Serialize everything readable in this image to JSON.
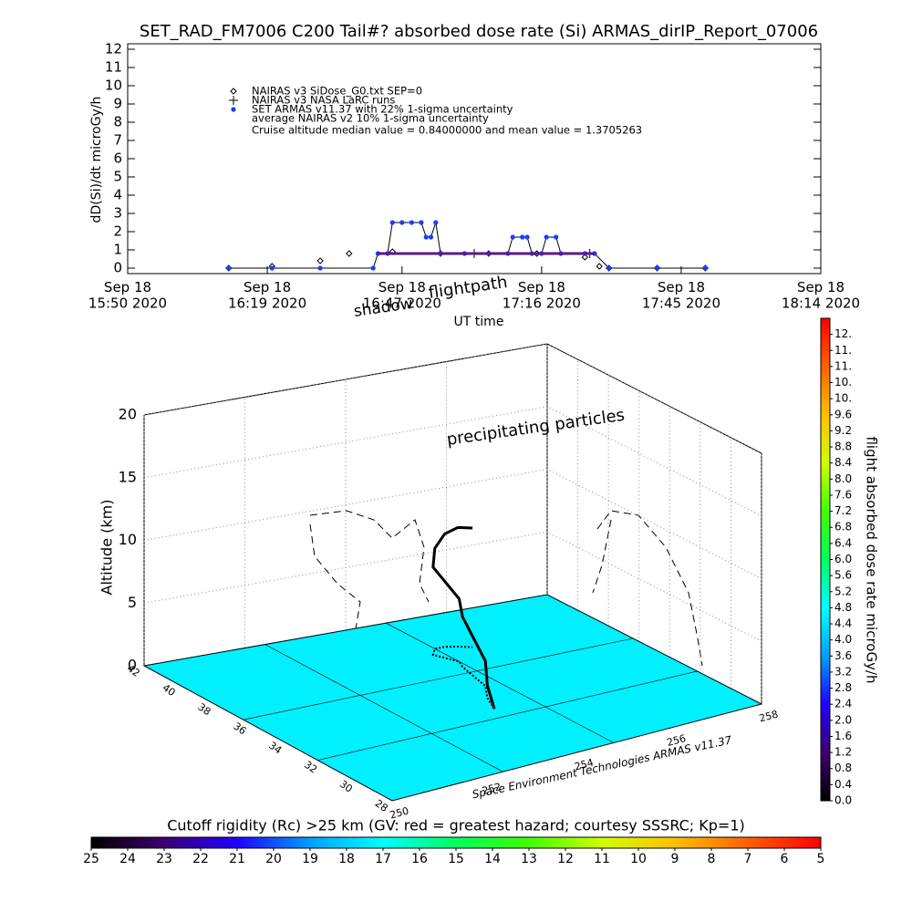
{
  "chart_data": [
    {
      "type": "line",
      "title": "SET_RAD_FM7006  C200 Tail#? absorbed dose rate (Si) ARMAS_dirIP_Report_07006",
      "ylabel": "dD(Si)/dt microGy/h",
      "xlim": [
        "2020-09-18T15:50",
        "2020-09-18T18:14"
      ],
      "xticks": [
        {
          "value": "2020-09-18T15:50",
          "label": "Sep 18\n15:50 2020"
        },
        {
          "value": "2020-09-18T16:19",
          "label": "Sep 18\n16:19 2020"
        },
        {
          "value": "2020-09-18T16:47",
          "label": "Sep 18\n16:47 2020"
        },
        {
          "value": "2020-09-18T17:16",
          "label": "Sep 18\n17:16 2020"
        },
        {
          "value": "2020-09-18T17:45",
          "label": "Sep 18\n17:45 2020"
        },
        {
          "value": "2020-09-18T18:14",
          "label": "Sep 18\n18:14 2020"
        }
      ],
      "ylim": [
        -0.3,
        12.3
      ],
      "yticks": [
        0,
        1,
        2,
        3,
        4,
        5,
        6,
        7,
        8,
        9,
        10,
        11,
        12
      ],
      "annotation": "Cruise altitude median value = 0.84000000 and mean value = 1.3705263",
      "series": [
        {
          "name": "NAIRAS v3 SiDose_G0.txt SEP=0",
          "color": "#000000",
          "marker": "diamond",
          "line": false,
          "x": [
            "2020-09-18T16:11",
            "2020-09-18T16:20",
            "2020-09-18T16:30",
            "2020-09-18T16:36",
            "2020-09-18T16:45",
            "2020-09-18T16:55",
            "2020-09-18T17:05",
            "2020-09-18T17:15",
            "2020-09-18T17:25",
            "2020-09-18T17:28",
            "2020-09-18T17:30",
            "2020-09-18T17:40",
            "2020-09-18T17:50"
          ],
          "values": [
            0,
            0.1,
            0.4,
            0.8,
            0.9,
            0.8,
            0.8,
            0.8,
            0.6,
            0.1,
            0,
            0,
            0
          ]
        },
        {
          "name": "NAIRAS v3 NASA LaRC runs",
          "color": "#000000",
          "marker": "plus",
          "line": false,
          "x": [
            "2020-09-18T17:02",
            "2020-09-18T17:26"
          ],
          "values": [
            0.8,
            0.8
          ]
        },
        {
          "name": "SET ARMAS v11.37 with 22% 1-sigma uncertainty",
          "color": "#1c3cff",
          "marker": "dot",
          "line": true,
          "x": [
            "2020-09-18T16:11",
            "2020-09-18T16:20",
            "2020-09-18T16:30",
            "2020-09-18T16:41",
            "2020-09-18T16:42",
            "2020-09-18T16:44",
            "2020-09-18T16:45",
            "2020-09-18T16:47",
            "2020-09-18T16:49",
            "2020-09-18T16:51",
            "2020-09-18T16:52",
            "2020-09-18T16:53",
            "2020-09-18T16:54",
            "2020-09-18T16:55",
            "2020-09-18T17:00",
            "2020-09-18T17:05",
            "2020-09-18T17:09",
            "2020-09-18T17:10",
            "2020-09-18T17:12",
            "2020-09-18T17:13",
            "2020-09-18T17:14",
            "2020-09-18T17:16",
            "2020-09-18T17:17",
            "2020-09-18T17:19",
            "2020-09-18T17:20",
            "2020-09-18T17:25",
            "2020-09-18T17:27",
            "2020-09-18T17:30",
            "2020-09-18T17:40",
            "2020-09-18T17:50"
          ],
          "values": [
            0,
            0,
            0,
            0,
            0.8,
            0.8,
            2.5,
            2.5,
            2.5,
            2.5,
            1.7,
            1.7,
            2.5,
            0.8,
            0.8,
            0.8,
            0.8,
            1.7,
            1.7,
            1.7,
            0.8,
            0.8,
            1.7,
            1.7,
            0.8,
            0.8,
            0.8,
            0,
            0,
            0
          ]
        },
        {
          "name": "average NAIRAS v2 10% 1-sigma uncertainty",
          "color": "#5a1a8c",
          "marker": "none",
          "line": true,
          "x": [
            "2020-09-18T16:42",
            "2020-09-18T17:27"
          ],
          "values": [
            0.8,
            0.8
          ]
        }
      ]
    },
    {
      "type": "scatter3d",
      "annotations": [
        "shadow",
        "flightpath",
        "UT time",
        "precipitating particles"
      ],
      "zlabel": "Altitude (km)",
      "zlim": [
        0,
        20
      ],
      "zticks": [
        0,
        5,
        10,
        15,
        20
      ],
      "xlim": [
        250,
        258
      ],
      "xticks": [
        250,
        252,
        254,
        256,
        258
      ],
      "ylim": [
        28,
        42
      ],
      "yticks": [
        28,
        30,
        32,
        34,
        36,
        38,
        40,
        42
      ],
      "credit": "Space Environment Technologies ARMAS v11.37",
      "floor_color": "#00f0ff",
      "track": {
        "color": "#000000",
        "lon": [
          254.0,
          254.2,
          254.5,
          254.6,
          254.7,
          254.8,
          254.7,
          254.6,
          254.8,
          255.0,
          255.2,
          255.4
        ],
        "lat": [
          33,
          34,
          35,
          36,
          37,
          37.5,
          38,
          38.5,
          39,
          39,
          38.8,
          38.5
        ],
        "alt": [
          0,
          1,
          2,
          3,
          4,
          5,
          6,
          7,
          8,
          9,
          9.5,
          9.5
        ]
      }
    },
    {
      "type": "colorbar",
      "orientation": "vertical",
      "label": "flight absorbed dose rate microGy/h",
      "ylim": [
        0,
        12
      ],
      "yticks": [
        {
          "value": 0,
          "label": "0.0"
        },
        0.4,
        0.8,
        1.2,
        1.6,
        {
          "value": 2,
          "label": "2.0"
        },
        2.4,
        2.8,
        3.2,
        3.6,
        {
          "value": 4,
          "label": "4.0"
        },
        4.4,
        4.8,
        5.2,
        5.6,
        {
          "value": 6,
          "label": "6.0"
        },
        6.4,
        6.8,
        7.2,
        7.6,
        {
          "value": 8,
          "label": "8.0"
        },
        8.4,
        8.8,
        9.2,
        9.6,
        {
          "value": 10,
          "label": "10."
        },
        {
          "value": 10.4,
          "label": "10."
        },
        {
          "value": 10.8,
          "label": "11."
        },
        {
          "value": 11.2,
          "label": "11."
        },
        {
          "value": 11.6,
          "label": "12."
        }
      ],
      "colors": [
        "#000000",
        "#3c0070",
        "#2000ff",
        "#00a0ff",
        "#00ffff",
        "#00ff60",
        "#40ff00",
        "#d0ff00",
        "#ffc000",
        "#ff6000",
        "#ff0000"
      ]
    },
    {
      "type": "colorbar",
      "orientation": "horizontal",
      "title": "Cutoff rigidity (Rc) >25 km (GV: red = greatest hazard; courtesy SSSRC; Kp=1)",
      "xlim": [
        25,
        5
      ],
      "xticks": [
        25,
        24,
        23,
        22,
        21,
        20,
        19,
        18,
        17,
        16,
        15,
        14,
        13,
        12,
        11,
        10,
        9,
        8,
        7,
        6,
        5
      ],
      "colors": [
        "#000000",
        "#3c0070",
        "#2000ff",
        "#00a0ff",
        "#00ffff",
        "#00ff60",
        "#40ff00",
        "#d0ff00",
        "#ffc000",
        "#ff6000",
        "#ff0000"
      ]
    }
  ]
}
